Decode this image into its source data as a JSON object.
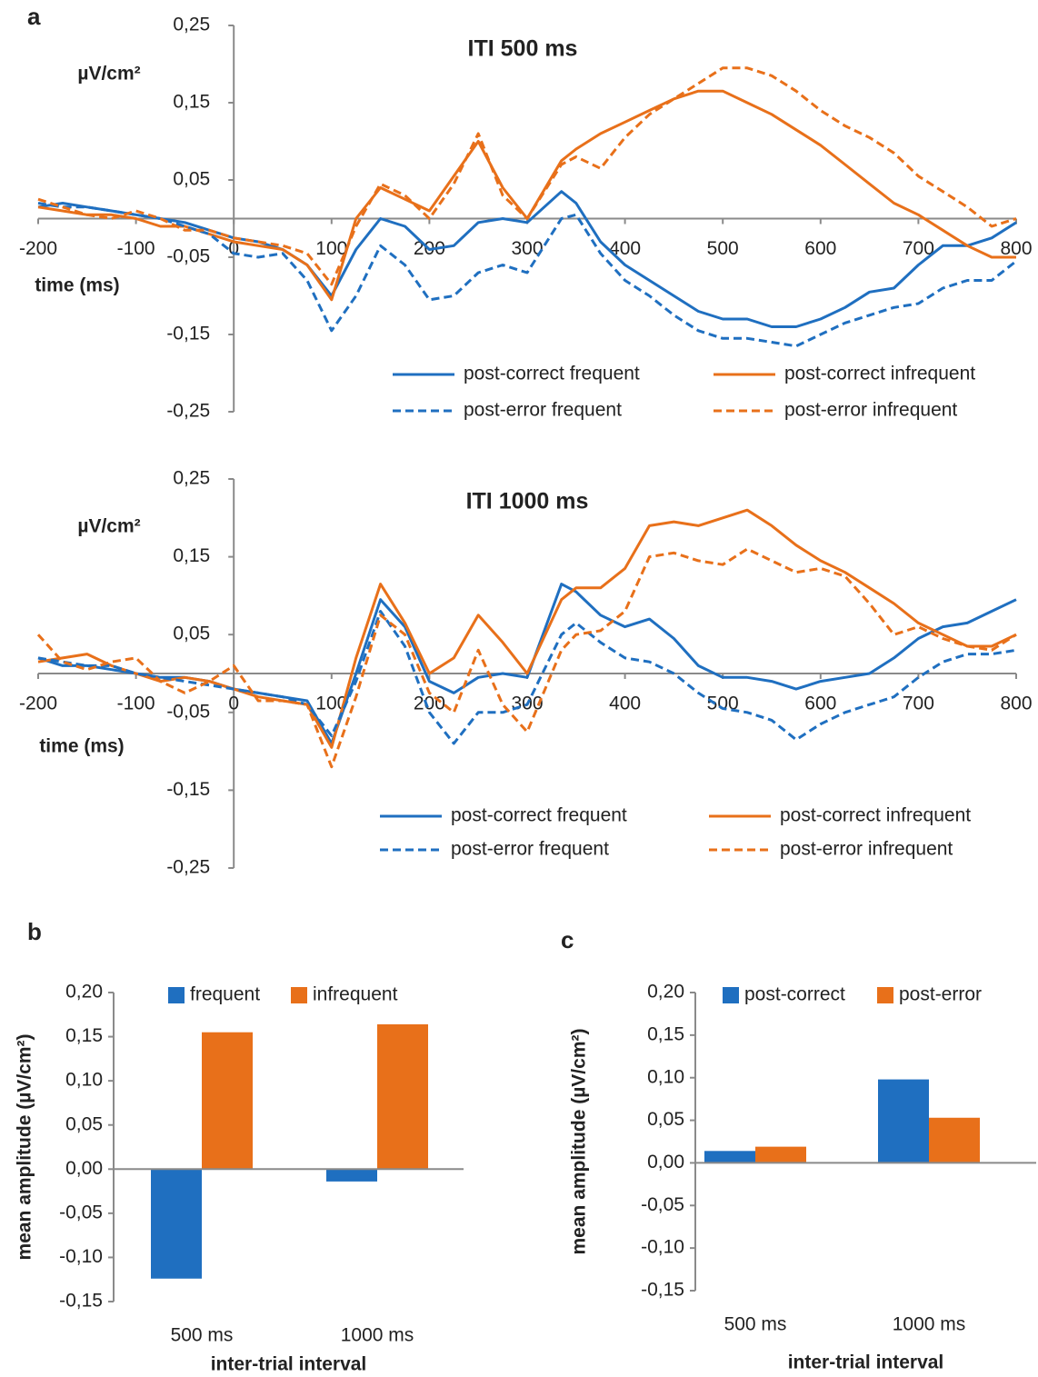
{
  "chart_data": [
    {
      "type": "line",
      "panel": "a",
      "title": "ITI 500 ms",
      "x_label": "time (ms)",
      "y_label": "µV/cm²",
      "legend": "bottom-right",
      "x": [
        -200,
        -175,
        -150,
        -125,
        -100,
        -75,
        -50,
        -25,
        0,
        25,
        50,
        75,
        100,
        125,
        150,
        175,
        200,
        225,
        250,
        275,
        300,
        335,
        350,
        375,
        400,
        425,
        450,
        475,
        500,
        525,
        550,
        575,
        600,
        625,
        650,
        675,
        700,
        725,
        750,
        775,
        800
      ],
      "xlim": [
        -200,
        800
      ],
      "xticks": [
        -200,
        -100,
        0,
        100,
        200,
        300,
        400,
        500,
        600,
        700,
        800
      ],
      "ylim": [
        -0.25,
        0.25
      ],
      "yticks": [
        {
          "value": 0.25,
          "label": "0,25"
        },
        {
          "value": 0.15,
          "label": "0,15"
        },
        {
          "value": 0.05,
          "label": "0,05"
        },
        {
          "value": -0.05,
          "label": "-0,05"
        },
        {
          "value": -0.15,
          "label": "-0,15"
        },
        {
          "value": -0.25,
          "label": "-0,25"
        }
      ],
      "series": [
        {
          "name": "post-correct frequent",
          "color": "#1f6fc0",
          "dashed": false,
          "values": [
            0.015,
            0.02,
            0.015,
            0.01,
            0.005,
            0,
            -0.005,
            -0.015,
            -0.025,
            -0.03,
            -0.04,
            -0.06,
            -0.1,
            -0.04,
            0,
            -0.01,
            -0.04,
            -0.035,
            -0.005,
            0,
            -0.005,
            0.035,
            0.02,
            -0.03,
            -0.06,
            -0.08,
            -0.1,
            -0.12,
            -0.13,
            -0.13,
            -0.14,
            -0.14,
            -0.13,
            -0.115,
            -0.095,
            -0.09,
            -0.06,
            -0.035,
            -0.035,
            -0.025,
            -0.005
          ]
        },
        {
          "name": "post-correct infrequent",
          "color": "#e8701a",
          "dashed": false,
          "values": [
            0.015,
            0.01,
            0.005,
            0.005,
            0,
            -0.01,
            -0.01,
            -0.02,
            -0.03,
            -0.035,
            -0.04,
            -0.06,
            -0.105,
            0,
            0.04,
            0.025,
            0.01,
            0.055,
            0.1,
            0.04,
            0,
            0.075,
            0.09,
            0.11,
            0.125,
            0.14,
            0.155,
            0.165,
            0.165,
            0.15,
            0.135,
            0.115,
            0.095,
            0.07,
            0.045,
            0.02,
            0.005,
            -0.015,
            -0.035,
            -0.05,
            -0.05
          ]
        },
        {
          "name": "post-error frequent",
          "color": "#1f6fc0",
          "dashed": true,
          "values": [
            0.02,
            0.015,
            0.015,
            0.01,
            0.005,
            0,
            -0.01,
            -0.02,
            -0.045,
            -0.05,
            -0.045,
            -0.08,
            -0.145,
            -0.1,
            -0.035,
            -0.06,
            -0.105,
            -0.1,
            -0.07,
            -0.06,
            -0.07,
            0,
            0.005,
            -0.045,
            -0.08,
            -0.1,
            -0.125,
            -0.145,
            -0.155,
            -0.155,
            -0.16,
            -0.165,
            -0.15,
            -0.135,
            -0.125,
            -0.115,
            -0.11,
            -0.09,
            -0.08,
            -0.08,
            -0.055
          ]
        },
        {
          "name": "post-error infrequent",
          "color": "#e8701a",
          "dashed": true,
          "values": [
            0.025,
            0.015,
            0.005,
            0,
            0.01,
            0,
            -0.015,
            -0.015,
            -0.025,
            -0.03,
            -0.035,
            -0.045,
            -0.085,
            -0.01,
            0.045,
            0.03,
            0,
            0.045,
            0.11,
            0.03,
            0,
            0.07,
            0.08,
            0.065,
            0.105,
            0.135,
            0.155,
            0.175,
            0.195,
            0.195,
            0.185,
            0.165,
            0.14,
            0.12,
            0.105,
            0.085,
            0.055,
            0.035,
            0.015,
            -0.01,
            0
          ]
        }
      ]
    },
    {
      "type": "line",
      "title": "ITI 1000 ms",
      "x_label": "time (ms)",
      "y_label": "µV/cm²",
      "legend": "bottom-right",
      "x": [
        -200,
        -175,
        -150,
        -125,
        -100,
        -75,
        -50,
        -25,
        0,
        25,
        50,
        75,
        100,
        125,
        150,
        175,
        200,
        225,
        250,
        275,
        300,
        335,
        350,
        375,
        400,
        425,
        450,
        475,
        500,
        525,
        550,
        575,
        600,
        625,
        650,
        675,
        700,
        725,
        750,
        775,
        800
      ],
      "xlim": [
        -200,
        800
      ],
      "xticks": [
        -200,
        -100,
        0,
        100,
        200,
        300,
        400,
        500,
        600,
        700,
        800
      ],
      "ylim": [
        -0.25,
        0.25
      ],
      "yticks": [
        {
          "value": 0.25,
          "label": "0,25"
        },
        {
          "value": 0.15,
          "label": "0,15"
        },
        {
          "value": 0.05,
          "label": "0,05"
        },
        {
          "value": -0.05,
          "label": "-0,05"
        },
        {
          "value": -0.15,
          "label": "-0,15"
        },
        {
          "value": -0.25,
          "label": "-0,25"
        }
      ],
      "series": [
        {
          "name": "post-correct frequent",
          "color": "#1f6fc0",
          "dashed": false,
          "values": [
            0.02,
            0.01,
            0.01,
            0.005,
            0,
            -0.005,
            -0.005,
            -0.01,
            -0.02,
            -0.025,
            -0.03,
            -0.035,
            -0.09,
            0,
            0.095,
            0.06,
            -0.01,
            -0.025,
            -0.005,
            0,
            -0.005,
            0.115,
            0.105,
            0.075,
            0.06,
            0.07,
            0.045,
            0.01,
            -0.005,
            -0.005,
            -0.01,
            -0.02,
            -0.01,
            -0.005,
            0,
            0.02,
            0.045,
            0.06,
            0.065,
            0.08,
            0.095
          ]
        },
        {
          "name": "post-correct infrequent",
          "color": "#e8701a",
          "dashed": false,
          "values": [
            0.015,
            0.02,
            0.025,
            0.01,
            0,
            -0.01,
            -0.005,
            -0.01,
            -0.02,
            -0.03,
            -0.035,
            -0.04,
            -0.095,
            0.02,
            0.115,
            0.065,
            0,
            0.02,
            0.075,
            0.04,
            0,
            0.095,
            0.11,
            0.11,
            0.135,
            0.19,
            0.195,
            0.19,
            0.2,
            0.21,
            0.19,
            0.165,
            0.145,
            0.13,
            0.11,
            0.09,
            0.065,
            0.05,
            0.035,
            0.035,
            0.05
          ]
        },
        {
          "name": "post-error frequent",
          "color": "#1f6fc0",
          "dashed": true,
          "values": [
            0.02,
            0.015,
            0.01,
            0.01,
            0,
            -0.005,
            -0.01,
            -0.015,
            -0.02,
            -0.025,
            -0.03,
            -0.04,
            -0.08,
            -0.01,
            0.08,
            0.035,
            -0.05,
            -0.09,
            -0.05,
            -0.05,
            -0.04,
            0.05,
            0.065,
            0.04,
            0.02,
            0.015,
            0,
            -0.025,
            -0.045,
            -0.05,
            -0.06,
            -0.085,
            -0.065,
            -0.05,
            -0.04,
            -0.03,
            -0.005,
            0.015,
            0.025,
            0.025,
            0.03
          ]
        },
        {
          "name": "post-error infrequent",
          "color": "#e8701a",
          "dashed": true,
          "values": [
            0.05,
            0.015,
            0.005,
            0.015,
            0.02,
            -0.01,
            -0.025,
            -0.01,
            0.01,
            -0.035,
            -0.035,
            -0.04,
            -0.12,
            -0.03,
            0.075,
            0.05,
            -0.025,
            -0.05,
            0.03,
            -0.04,
            -0.075,
            0.03,
            0.05,
            0.055,
            0.08,
            0.15,
            0.155,
            0.145,
            0.14,
            0.16,
            0.145,
            0.13,
            0.135,
            0.125,
            0.09,
            0.05,
            0.06,
            0.045,
            0.035,
            0.03,
            0.05
          ]
        }
      ]
    },
    {
      "type": "bar",
      "panel": "b",
      "x_label": "inter-trial interval",
      "y_label": "mean amplitude (µV/cm²)",
      "legend": "top",
      "categories": [
        "500 ms",
        "1000 ms"
      ],
      "ylim": [
        -0.15,
        0.2
      ],
      "yticks": [
        {
          "value": 0.2,
          "label": "0,20"
        },
        {
          "value": 0.15,
          "label": "0,15"
        },
        {
          "value": 0.1,
          "label": "0,10"
        },
        {
          "value": 0.05,
          "label": "0,05"
        },
        {
          "value": 0,
          "label": "0,00"
        },
        {
          "value": -0.05,
          "label": "-0,05"
        },
        {
          "value": -0.1,
          "label": "-0,10"
        },
        {
          "value": -0.15,
          "label": "-0,15"
        }
      ],
      "series": [
        {
          "name": "frequent",
          "color": "#1f6fc0",
          "values": [
            -0.124,
            -0.014
          ]
        },
        {
          "name": "infrequent",
          "color": "#e8701a",
          "values": [
            0.155,
            0.164
          ]
        }
      ]
    },
    {
      "type": "bar",
      "panel": "c",
      "x_label": "inter-trial interval",
      "y_label": "mean amplitude (µV/cm²)",
      "legend": "top",
      "categories": [
        "500 ms",
        "1000 ms"
      ],
      "ylim": [
        -0.15,
        0.2
      ],
      "yticks": [
        {
          "value": 0.2,
          "label": "0,20"
        },
        {
          "value": 0.15,
          "label": "0,15"
        },
        {
          "value": 0.1,
          "label": "0,10"
        },
        {
          "value": 0.05,
          "label": "0,05"
        },
        {
          "value": 0,
          "label": "0,00"
        },
        {
          "value": -0.05,
          "label": "-0,05"
        },
        {
          "value": -0.1,
          "label": "-0,10"
        },
        {
          "value": -0.15,
          "label": "-0,15"
        }
      ],
      "series": [
        {
          "name": "post-correct",
          "color": "#1f6fc0",
          "values": [
            0.014,
            0.098
          ]
        },
        {
          "name": "post-error",
          "color": "#e8701a",
          "values": [
            0.019,
            0.053
          ]
        }
      ]
    }
  ]
}
